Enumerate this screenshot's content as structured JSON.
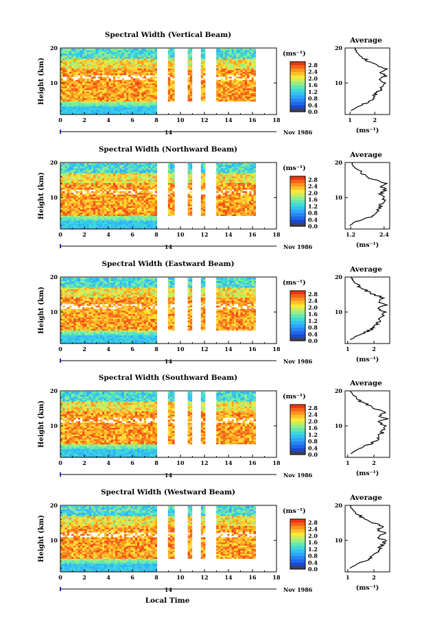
{
  "figure": {
    "x_label": "Local Time",
    "date_day": "14",
    "date_month_year": "Nov 1986",
    "colorbar_unit": "(ms⁻¹)",
    "profile_unit": "(ms⁻¹)",
    "profile_title": "Average",
    "y_label": "Height (km)"
  },
  "chart_data": [
    {
      "type": "heatmap",
      "title": "Spectral Width (Vertical Beam)",
      "x_ticks": [
        0,
        2,
        4,
        6,
        8,
        10,
        12,
        14,
        16,
        18
      ],
      "xlim": [
        0,
        18
      ],
      "y_ticks": [
        10,
        20
      ],
      "ylim": [
        1,
        20
      ],
      "data_gaps_hours": [
        [
          8.0,
          8.8
        ],
        [
          9.45,
          10.6
        ],
        [
          10.95,
          11.7
        ],
        [
          12.05,
          12.95
        ]
      ],
      "data_end_hours": 16.2,
      "colorbar_ticks": [
        "2.8",
        "2.4",
        "2.0",
        "1.6",
        "1.2",
        "0.8",
        "0.4",
        "0.0"
      ],
      "colorbar_range": [
        0.0,
        3.0
      ],
      "profile": {
        "title": "Average",
        "x_ticks": [
          "1",
          "2"
        ],
        "xlim": [
          0.8,
          2.6
        ],
        "heights": [
          2,
          3,
          4,
          5,
          6,
          7,
          8,
          9,
          10,
          11,
          12,
          13,
          14,
          15,
          16,
          17,
          18,
          19,
          20
        ],
        "values": [
          1.05,
          1.25,
          1.55,
          1.85,
          1.95,
          2.05,
          2.2,
          2.3,
          2.35,
          2.15,
          2.45,
          2.2,
          2.5,
          2.1,
          1.8,
          1.55,
          1.4,
          1.25,
          1.2
        ]
      }
    },
    {
      "type": "heatmap",
      "title": "Spectral Width (Northward Beam)",
      "x_ticks": [
        0,
        2,
        4,
        6,
        8,
        10,
        12,
        14,
        16,
        18
      ],
      "xlim": [
        0,
        18
      ],
      "y_ticks": [
        10,
        20
      ],
      "ylim": [
        1,
        20
      ],
      "data_gaps_hours": [
        [
          8.0,
          8.8
        ],
        [
          9.45,
          10.6
        ],
        [
          10.95,
          11.7
        ],
        [
          12.05,
          12.95
        ]
      ],
      "data_end_hours": 16.2,
      "colorbar_ticks": [
        "2.8",
        "2.4",
        "2.0",
        "1.6",
        "1.2",
        "0.8",
        "0.4",
        "0.0"
      ],
      "colorbar_range": [
        0.0,
        3.0
      ],
      "profile": {
        "title": "Average",
        "x_ticks": [
          "1.2",
          "2.4"
        ],
        "xlim": [
          1.0,
          2.6
        ],
        "heights": [
          2,
          3,
          4,
          5,
          6,
          7,
          8,
          9,
          10,
          11,
          12,
          13,
          14,
          15,
          16,
          17,
          18,
          19,
          20
        ],
        "values": [
          1.15,
          1.35,
          1.75,
          2.05,
          2.15,
          2.2,
          2.3,
          2.4,
          2.45,
          2.2,
          2.5,
          2.3,
          2.45,
          2.05,
          1.8,
          1.6,
          1.45,
          1.3,
          1.25
        ]
      }
    },
    {
      "type": "heatmap",
      "title": "Spectral Width (Eastward Beam)",
      "x_ticks": [
        0,
        2,
        4,
        6,
        8,
        10,
        12,
        14,
        16,
        18
      ],
      "xlim": [
        0,
        18
      ],
      "y_ticks": [
        10,
        20
      ],
      "ylim": [
        1,
        20
      ],
      "data_gaps_hours": [
        [
          8.0,
          8.8
        ],
        [
          9.45,
          10.6
        ],
        [
          10.95,
          11.7
        ],
        [
          12.05,
          12.95
        ]
      ],
      "data_end_hours": 16.2,
      "colorbar_ticks": [
        "2.8",
        "2.4",
        "2.0",
        "1.6",
        "1.2",
        "0.8",
        "0.4",
        "0.0"
      ],
      "colorbar_range": [
        0.0,
        3.0
      ],
      "profile": {
        "title": "Average",
        "x_ticks": [
          "1",
          "2"
        ],
        "xlim": [
          0.9,
          2.6
        ],
        "heights": [
          2,
          3,
          4,
          5,
          6,
          7,
          8,
          9,
          10,
          11,
          12,
          13,
          14,
          15,
          16,
          17,
          18,
          19,
          20
        ],
        "values": [
          1.1,
          1.3,
          1.6,
          1.9,
          2.05,
          2.15,
          2.25,
          2.35,
          2.4,
          2.1,
          2.45,
          2.15,
          2.4,
          2.0,
          1.75,
          1.5,
          1.35,
          1.2,
          1.15
        ]
      }
    },
    {
      "type": "heatmap",
      "title": "Spectral Width (Southward Beam)",
      "x_ticks": [
        0,
        2,
        4,
        6,
        8,
        10,
        12,
        14,
        16,
        18
      ],
      "xlim": [
        0,
        18
      ],
      "y_ticks": [
        10,
        20
      ],
      "ylim": [
        1,
        20
      ],
      "data_gaps_hours": [
        [
          8.0,
          8.8
        ],
        [
          9.45,
          10.6
        ],
        [
          10.95,
          11.7
        ],
        [
          12.05,
          12.95
        ]
      ],
      "data_end_hours": 16.2,
      "colorbar_ticks": [
        "2.8",
        "2.4",
        "2.0",
        "1.6",
        "1.2",
        "0.8",
        "0.4",
        "0.0"
      ],
      "colorbar_range": [
        0.0,
        3.0
      ],
      "profile": {
        "title": "Average",
        "x_ticks": [
          "1",
          "2"
        ],
        "xlim": [
          0.9,
          2.6
        ],
        "heights": [
          2,
          3,
          4,
          5,
          6,
          7,
          8,
          9,
          10,
          11,
          12,
          13,
          14,
          15,
          16,
          17,
          18,
          19,
          20
        ],
        "values": [
          1.1,
          1.3,
          1.6,
          1.9,
          2.1,
          2.2,
          2.3,
          2.35,
          2.45,
          2.15,
          2.5,
          2.2,
          2.45,
          2.0,
          1.75,
          1.5,
          1.35,
          1.2,
          1.1
        ]
      }
    },
    {
      "type": "heatmap",
      "title": "Spectral Width (Westward Beam)",
      "x_ticks": [
        0,
        2,
        4,
        6,
        8,
        10,
        12,
        14,
        16,
        18
      ],
      "xlim": [
        0,
        18
      ],
      "y_ticks": [
        10,
        20
      ],
      "ylim": [
        1,
        20
      ],
      "data_gaps_hours": [
        [
          8.0,
          8.8
        ],
        [
          9.45,
          10.6
        ],
        [
          10.95,
          11.7
        ],
        [
          12.05,
          12.95
        ]
      ],
      "data_end_hours": 16.2,
      "colorbar_ticks": [
        "2.8",
        "2.4",
        "2.0",
        "1.6",
        "1.2",
        "0.8",
        "0.4",
        "0.0"
      ],
      "colorbar_range": [
        0.0,
        3.0
      ],
      "profile": {
        "title": "Average",
        "x_ticks": [
          "1",
          "2"
        ],
        "xlim": [
          0.9,
          2.6
        ],
        "heights": [
          2,
          3,
          4,
          5,
          6,
          7,
          8,
          9,
          10,
          11,
          12,
          13,
          14,
          15,
          16,
          17,
          18,
          19,
          20
        ],
        "values": [
          1.1,
          1.3,
          1.6,
          1.9,
          2.05,
          2.15,
          2.25,
          2.35,
          2.4,
          2.1,
          2.45,
          2.15,
          2.4,
          1.95,
          1.7,
          1.45,
          1.3,
          1.15,
          1.1
        ]
      }
    }
  ]
}
